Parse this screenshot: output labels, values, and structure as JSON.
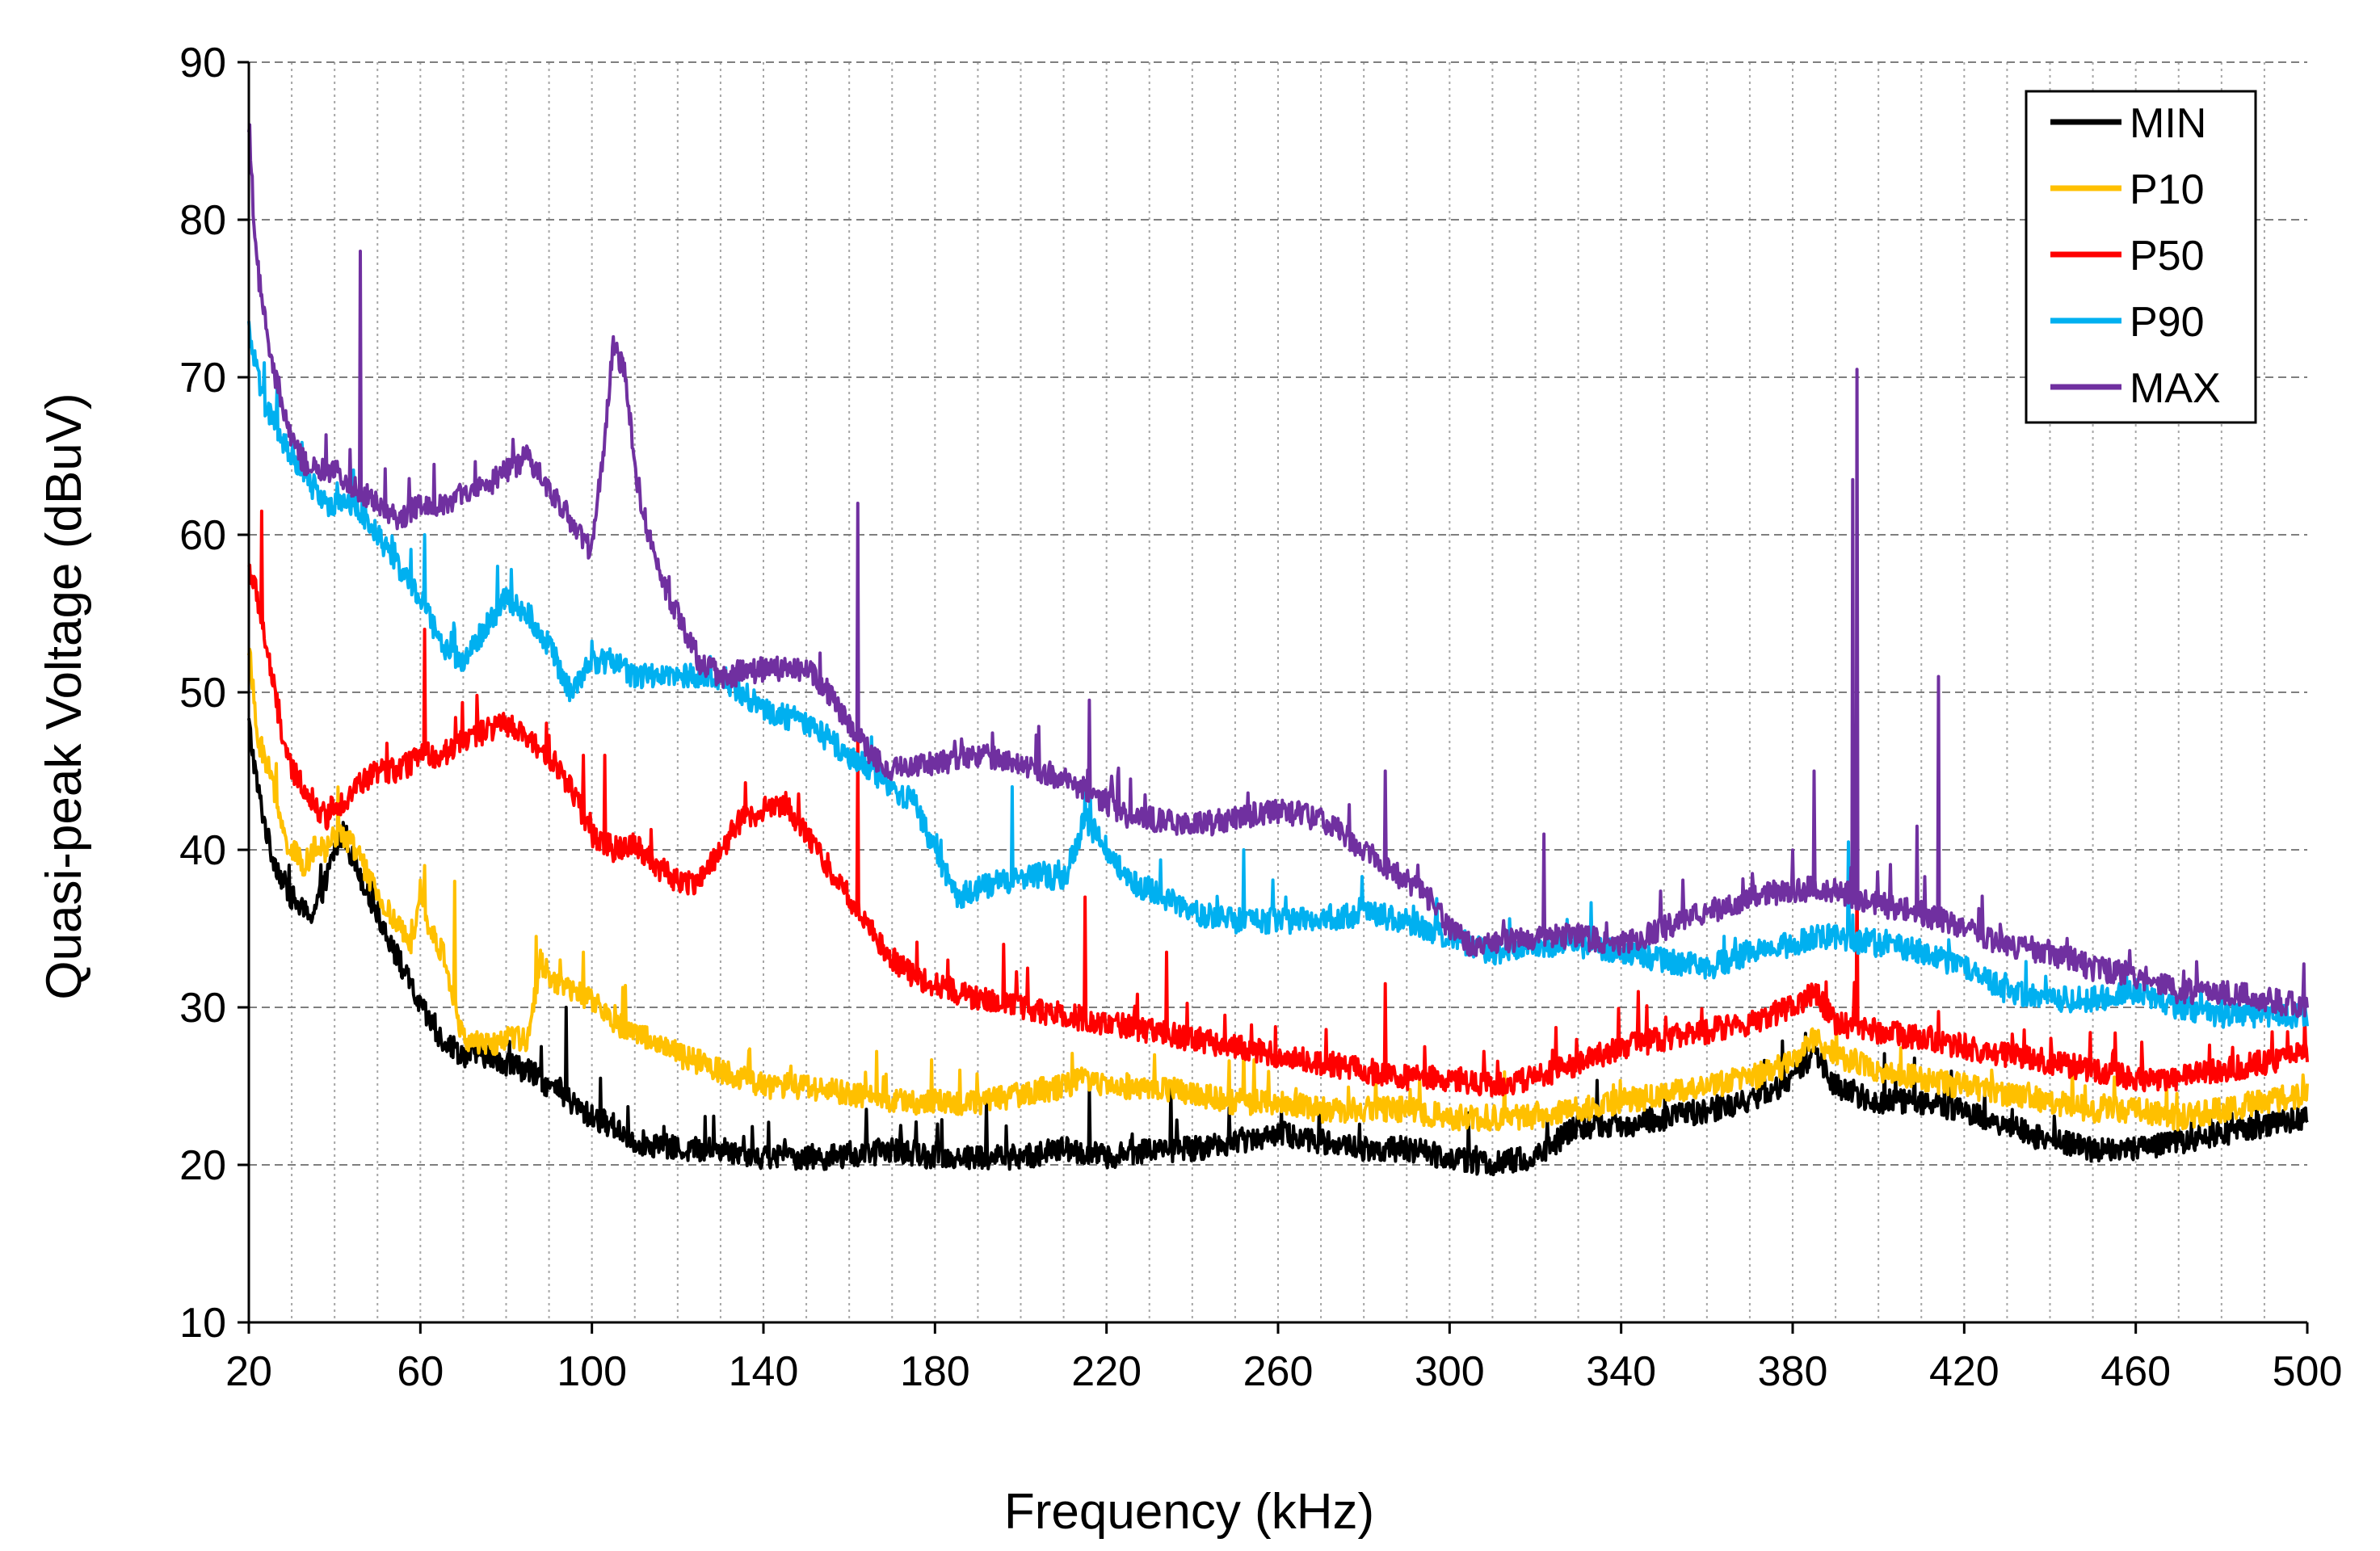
{
  "chart_data": {
    "type": "line",
    "title": "",
    "xlabel": "Frequency (kHz)",
    "ylabel": "Quasi-peak Voltage (dBuV)",
    "xlim": [
      20,
      500
    ],
    "ylim": [
      10,
      90
    ],
    "x_ticks": [
      20,
      60,
      100,
      140,
      180,
      220,
      260,
      300,
      340,
      380,
      420,
      460,
      500
    ],
    "y_ticks": [
      10,
      20,
      30,
      40,
      50,
      60,
      70,
      80,
      90
    ],
    "x_minor_step": 10,
    "grid": {
      "vertical": "dotted every 10 kHz",
      "horizontal": "dashed every 10 dBuV"
    },
    "legend_position": "top-right",
    "series": [
      {
        "name": "MIN",
        "color": "#000000",
        "x": [
          20,
          22,
          25,
          28,
          30,
          33,
          35,
          38,
          40,
          42,
          45,
          50,
          55,
          60,
          65,
          70,
          75,
          80,
          85,
          90,
          95,
          100,
          105,
          110,
          120,
          130,
          140,
          150,
          160,
          170,
          180,
          190,
          200,
          210,
          220,
          230,
          240,
          250,
          260,
          270,
          280,
          290,
          300,
          310,
          320,
          330,
          340,
          350,
          360,
          370,
          380,
          385,
          390,
          400,
          410,
          420,
          430,
          440,
          450,
          460,
          470,
          480,
          490,
          500
        ],
        "y": [
          48,
          44,
          40,
          38,
          37,
          36,
          36,
          38,
          40,
          41,
          39,
          36,
          33,
          30,
          28,
          27,
          27,
          26.5,
          26,
          25,
          24,
          23,
          22.5,
          21.5,
          21,
          21,
          20.5,
          20.5,
          20.5,
          21,
          20.5,
          20.5,
          20.5,
          21,
          20.5,
          21,
          21,
          21.5,
          22,
          21.5,
          21,
          21,
          20.5,
          20,
          20.5,
          22.5,
          22.5,
          23,
          23.5,
          24,
          25.5,
          27,
          25,
          24,
          24,
          23.5,
          22.5,
          21.5,
          21,
          21,
          21.5,
          22,
          22.5,
          23
        ],
        "spikes": [
          [
            94,
            30
          ],
          [
            102,
            25.5
          ],
          [
            172,
            22.5
          ],
          [
            192,
            24
          ],
          [
            216,
            25
          ],
          [
            235,
            25
          ]
        ]
      },
      {
        "name": "P10",
        "color": "#FFC000",
        "x": [
          20,
          22,
          25,
          28,
          30,
          33,
          35,
          38,
          40,
          42,
          45,
          50,
          55,
          58,
          60,
          62,
          64,
          66,
          68,
          70,
          75,
          80,
          85,
          88,
          90,
          95,
          100,
          105,
          110,
          120,
          130,
          140,
          150,
          160,
          170,
          180,
          190,
          200,
          210,
          215,
          220,
          230,
          240,
          250,
          260,
          270,
          280,
          290,
          300,
          310,
          320,
          330,
          340,
          350,
          360,
          370,
          380,
          385,
          390,
          400,
          410,
          420,
          430,
          440,
          450,
          460,
          470,
          480,
          490,
          500
        ],
        "y": [
          53,
          47,
          45,
          41,
          40,
          39,
          40,
          40,
          41,
          41,
          40,
          37,
          35,
          34,
          38,
          35,
          34,
          33,
          30,
          28,
          27.5,
          28,
          28,
          33,
          32,
          31,
          30.5,
          29,
          28.5,
          27,
          26,
          25,
          25,
          24.5,
          24,
          24,
          24,
          24.5,
          25,
          25.5,
          25,
          25,
          24.5,
          24,
          24,
          23.5,
          23.5,
          23.5,
          23,
          23,
          23,
          23.5,
          24,
          24.5,
          25,
          25.5,
          26.5,
          28,
          27,
          26,
          25.5,
          25,
          24.5,
          24,
          23.5,
          23.5,
          23,
          23.5,
          24,
          24.5
        ],
        "spikes": [
          [
            61,
            39
          ],
          [
            68,
            38
          ],
          [
            87,
            34.5
          ],
          [
            98,
            33.5
          ],
          [
            252,
            27.5
          ]
        ]
      },
      {
        "name": "P50",
        "color": "#FF0000",
        "x": [
          20,
          22,
          24,
          26,
          28,
          30,
          33,
          35,
          38,
          40,
          42,
          45,
          50,
          55,
          60,
          65,
          70,
          75,
          80,
          85,
          90,
          95,
          100,
          105,
          110,
          115,
          120,
          125,
          130,
          135,
          140,
          145,
          150,
          155,
          160,
          165,
          170,
          175,
          180,
          190,
          200,
          210,
          220,
          230,
          240,
          250,
          260,
          270,
          280,
          290,
          300,
          310,
          320,
          330,
          340,
          350,
          360,
          370,
          380,
          385,
          390,
          400,
          410,
          420,
          430,
          440,
          450,
          460,
          470,
          480,
          490,
          500
        ],
        "y": [
          58,
          56,
          53,
          50,
          47,
          45,
          44,
          43,
          42,
          43,
          43,
          44,
          45,
          45,
          46,
          46,
          47,
          47.5,
          48,
          47,
          46,
          44,
          41,
          40,
          40.5,
          39,
          38,
          38,
          40,
          42,
          42.5,
          43,
          41,
          39,
          37,
          35,
          33,
          32,
          31.5,
          30.5,
          30,
          29.5,
          29,
          28.5,
          28,
          27.5,
          27,
          26.5,
          26,
          25.5,
          25.5,
          25,
          25.5,
          26.5,
          27.5,
          28,
          28.5,
          29,
          30,
          31,
          29,
          28.5,
          28,
          27.5,
          27,
          26.5,
          26,
          25.5,
          25.5,
          26,
          26.5,
          27
        ],
        "spikes": [
          [
            23,
            61.5
          ],
          [
            27,
            49.5
          ],
          [
            61,
            54
          ],
          [
            98,
            46
          ],
          [
            103,
            46
          ],
          [
            162,
            47
          ],
          [
            183,
            33
          ],
          [
            196,
            34
          ],
          [
            215,
            37
          ],
          [
            234,
            33.5
          ],
          [
            285,
            31.5
          ],
          [
            344,
            31
          ],
          [
            395,
            39
          ]
        ]
      },
      {
        "name": "P90",
        "color": "#00B0F0",
        "x": [
          20,
          22,
          24,
          26,
          28,
          30,
          33,
          35,
          38,
          40,
          45,
          50,
          55,
          60,
          65,
          70,
          75,
          80,
          85,
          90,
          95,
          100,
          105,
          110,
          120,
          130,
          140,
          150,
          160,
          165,
          170,
          175,
          180,
          185,
          190,
          195,
          200,
          205,
          210,
          215,
          220,
          225,
          230,
          240,
          250,
          260,
          270,
          280,
          290,
          300,
          310,
          320,
          330,
          340,
          350,
          360,
          370,
          380,
          385,
          390,
          400,
          410,
          420,
          430,
          440,
          450,
          460,
          470,
          480,
          490,
          500
        ],
        "y": [
          73,
          70,
          68,
          67,
          66,
          65,
          64,
          63,
          62,
          62,
          62,
          60,
          58,
          56,
          53,
          52,
          54,
          56,
          55,
          53,
          50,
          52,
          52,
          51,
          51,
          51,
          49,
          48,
          46,
          45,
          44,
          43,
          40,
          37,
          37.5,
          38,
          38,
          38.5,
          38,
          42,
          40,
          38,
          37.5,
          36,
          35.5,
          35.5,
          35.5,
          36,
          35.5,
          34.5,
          33.5,
          34,
          34,
          33.5,
          33,
          32.5,
          33.5,
          34,
          34.5,
          34.5,
          34,
          33.5,
          32.5,
          31,
          30.5,
          30.5,
          31,
          30,
          29.5,
          29.5,
          29.5
        ],
        "spikes": [
          [
            61,
            60
          ],
          [
            78,
            58
          ],
          [
            198,
            44
          ],
          [
            215,
            44
          ],
          [
            252,
            40
          ],
          [
            393,
            40.5
          ]
        ]
      },
      {
        "name": "MAX",
        "color": "#7030A0",
        "x": [
          20,
          21,
          22,
          24,
          26,
          28,
          30,
          33,
          36,
          40,
          45,
          50,
          55,
          60,
          65,
          70,
          75,
          80,
          85,
          90,
          95,
          100,
          103,
          105,
          108,
          110,
          115,
          120,
          125,
          130,
          140,
          150,
          155,
          160,
          165,
          170,
          180,
          190,
          200,
          210,
          220,
          225,
          230,
          240,
          250,
          260,
          270,
          280,
          290,
          295,
          300,
          305,
          310,
          320,
          330,
          340,
          350,
          360,
          370,
          380,
          390,
          400,
          410,
          420,
          430,
          440,
          450,
          460,
          470,
          480,
          490,
          500
        ],
        "y": [
          86,
          81,
          77,
          73,
          70,
          68,
          66,
          64.5,
          64,
          64,
          63,
          62,
          61,
          62,
          62,
          62.5,
          63,
          64,
          65,
          63,
          61,
          59,
          66,
          72,
          70,
          64,
          58,
          55,
          52,
          51,
          51.5,
          51.5,
          50,
          48,
          46,
          45,
          45.5,
          46,
          45.5,
          44.5,
          43,
          42,
          42,
          41.5,
          42,
          42.5,
          42,
          40,
          38,
          37,
          35,
          34,
          34,
          34.5,
          34.5,
          34,
          35,
          36,
          37,
          37.5,
          37.5,
          36.5,
          36,
          35,
          34,
          33.5,
          32.5,
          32,
          31,
          31,
          30.5,
          30
        ],
        "spikes": [
          [
            27,
            70
          ],
          [
            46,
            78
          ],
          [
            162,
            62
          ],
          [
            216,
            49.5
          ],
          [
            285,
            45
          ],
          [
            322,
            41
          ],
          [
            385,
            45
          ],
          [
            394,
            63.5
          ],
          [
            395,
            70.5
          ],
          [
            409,
            41.5
          ],
          [
            414,
            51
          ]
        ]
      }
    ]
  }
}
